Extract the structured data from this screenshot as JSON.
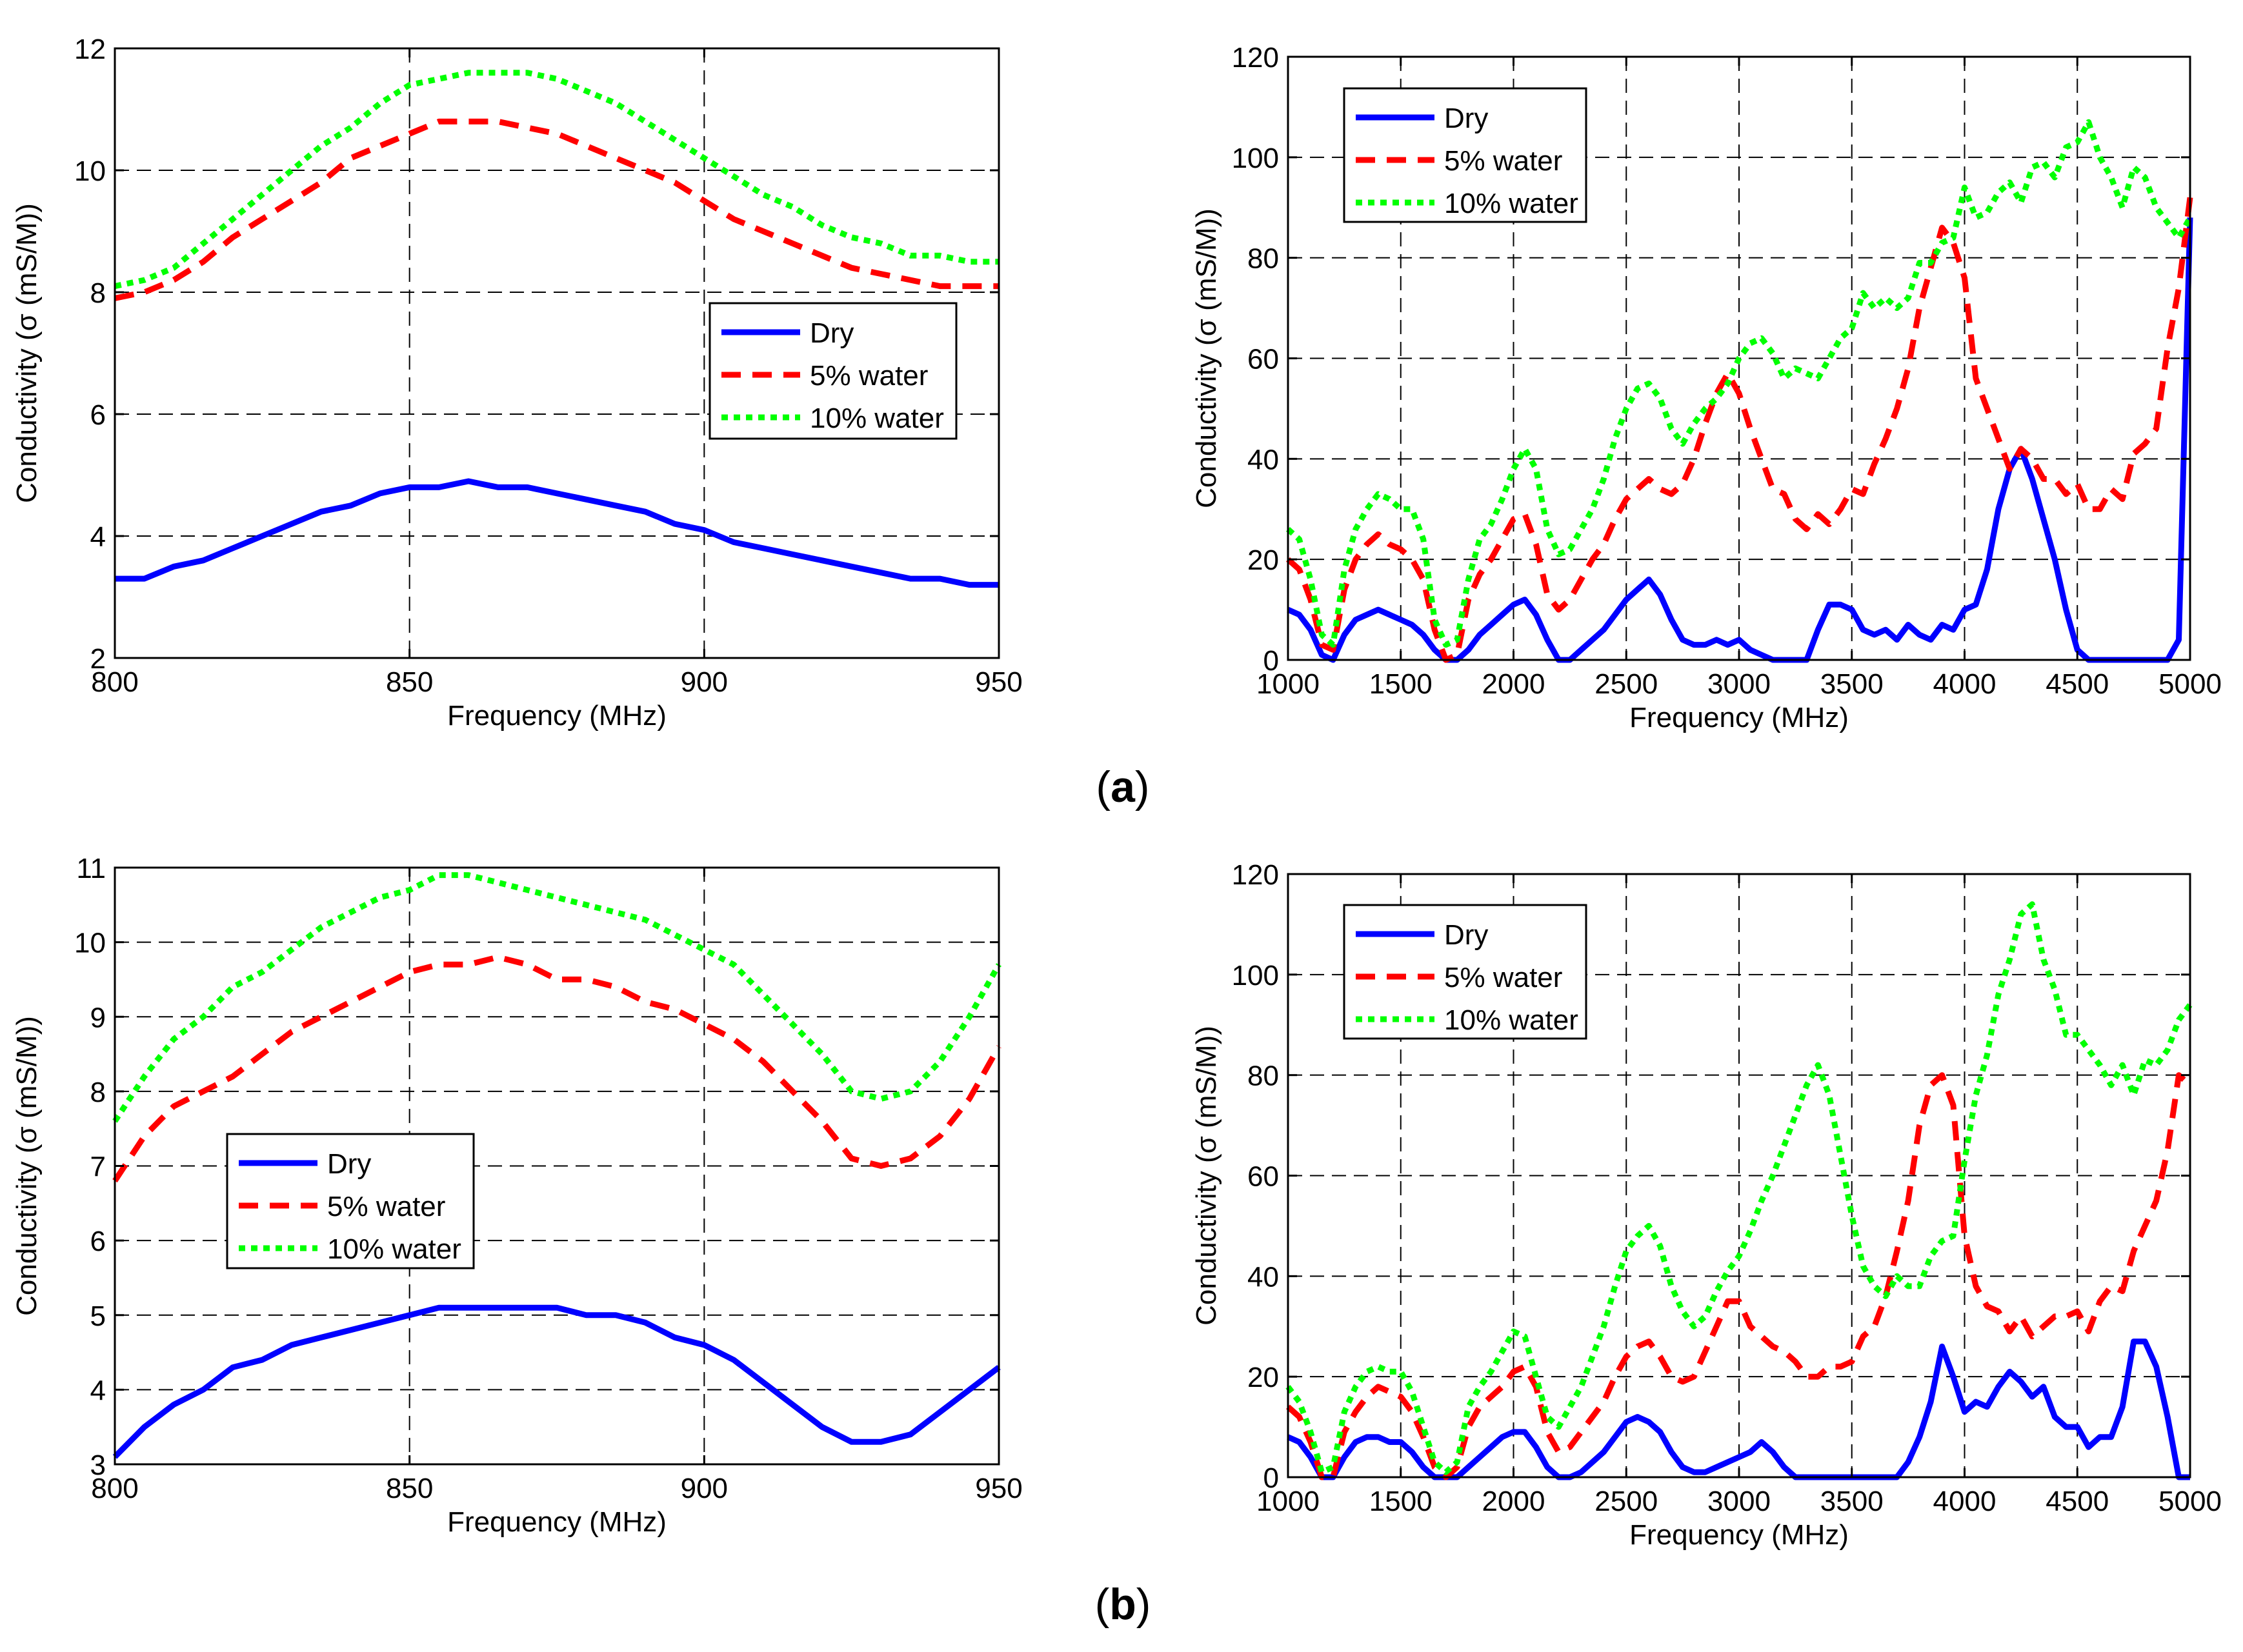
{
  "figure": {
    "captions": [
      {
        "open": "(",
        "letter": "a",
        "close": ")"
      },
      {
        "open": "(",
        "letter": "b",
        "close": ")"
      }
    ]
  },
  "colors": {
    "dry": "#0000ff",
    "five": "#ff0000",
    "ten": "#00ff00"
  },
  "chart_data": [
    {
      "type": "line",
      "panel": "a",
      "xlabel": "Frequency (MHz)",
      "ylabel": "Conductivity (σ (mS/M))",
      "xlim": [
        800,
        950
      ],
      "ylim": [
        2,
        12
      ],
      "xticks": [
        800,
        850,
        900,
        950
      ],
      "yticks": [
        2,
        4,
        6,
        8,
        10,
        12
      ],
      "grid": true,
      "legend_position": "center-right",
      "x": [
        800,
        805,
        810,
        815,
        820,
        825,
        830,
        835,
        840,
        845,
        850,
        855,
        860,
        865,
        870,
        875,
        880,
        885,
        890,
        895,
        900,
        905,
        910,
        915,
        920,
        925,
        930,
        935,
        940,
        945,
        950
      ],
      "series": [
        {
          "name": "Dry",
          "style": "solid",
          "color": "#0000ff",
          "values": [
            3.3,
            3.3,
            3.5,
            3.6,
            3.8,
            4.0,
            4.2,
            4.4,
            4.5,
            4.7,
            4.8,
            4.8,
            4.9,
            4.8,
            4.8,
            4.7,
            4.6,
            4.5,
            4.4,
            4.2,
            4.1,
            3.9,
            3.8,
            3.7,
            3.6,
            3.5,
            3.4,
            3.3,
            3.3,
            3.2,
            3.2
          ]
        },
        {
          "name": "5% water",
          "style": "dashed",
          "color": "#ff0000",
          "values": [
            7.9,
            8.0,
            8.2,
            8.5,
            8.9,
            9.2,
            9.5,
            9.8,
            10.2,
            10.4,
            10.6,
            10.8,
            10.8,
            10.8,
            10.7,
            10.6,
            10.4,
            10.2,
            10.0,
            9.8,
            9.5,
            9.2,
            9.0,
            8.8,
            8.6,
            8.4,
            8.3,
            8.2,
            8.1,
            8.1,
            8.1
          ]
        },
        {
          "name": "10% water",
          "style": "dotted",
          "color": "#00ff00",
          "values": [
            8.1,
            8.2,
            8.4,
            8.8,
            9.2,
            9.6,
            10.0,
            10.4,
            10.7,
            11.1,
            11.4,
            11.5,
            11.6,
            11.6,
            11.6,
            11.5,
            11.3,
            11.1,
            10.8,
            10.5,
            10.2,
            9.9,
            9.6,
            9.4,
            9.1,
            8.9,
            8.8,
            8.6,
            8.6,
            8.5,
            8.5
          ]
        }
      ]
    },
    {
      "type": "line",
      "panel": "a",
      "xlabel": "Frequency (MHz)",
      "ylabel": "Conductivity (σ (mS/M))",
      "xlim": [
        1000,
        5000
      ],
      "ylim": [
        0,
        120
      ],
      "xticks": [
        1000,
        1500,
        2000,
        2500,
        3000,
        3500,
        4000,
        4500,
        5000
      ],
      "yticks": [
        0,
        20,
        40,
        60,
        80,
        100,
        120
      ],
      "grid": true,
      "legend_position": "top-left",
      "x": [
        1000,
        1050,
        1100,
        1150,
        1200,
        1250,
        1300,
        1350,
        1400,
        1450,
        1500,
        1550,
        1600,
        1650,
        1700,
        1750,
        1800,
        1850,
        1900,
        1950,
        2000,
        2050,
        2100,
        2150,
        2200,
        2250,
        2300,
        2350,
        2400,
        2450,
        2500,
        2550,
        2600,
        2650,
        2700,
        2750,
        2800,
        2850,
        2900,
        2950,
        3000,
        3050,
        3100,
        3150,
        3200,
        3250,
        3300,
        3350,
        3400,
        3450,
        3500,
        3550,
        3600,
        3650,
        3700,
        3750,
        3800,
        3850,
        3900,
        3950,
        4000,
        4050,
        4100,
        4150,
        4200,
        4250,
        4300,
        4350,
        4400,
        4450,
        4500,
        4550,
        4600,
        4650,
        4700,
        4750,
        4800,
        4850,
        4900,
        4950,
        5000
      ],
      "series": [
        {
          "name": "Dry",
          "style": "solid",
          "color": "#0000ff",
          "values": [
            10,
            9,
            6,
            1,
            0,
            5,
            8,
            9,
            10,
            9,
            8,
            7,
            5,
            2,
            0,
            0,
            2,
            5,
            7,
            9,
            11,
            12,
            9,
            4,
            0,
            0,
            2,
            4,
            6,
            9,
            12,
            14,
            16,
            13,
            8,
            4,
            3,
            3,
            4,
            3,
            4,
            2,
            1,
            0,
            0,
            0,
            0,
            6,
            11,
            11,
            10,
            6,
            5,
            6,
            4,
            7,
            5,
            4,
            7,
            6,
            10,
            11,
            18,
            30,
            38,
            42,
            36,
            28,
            20,
            10,
            2,
            0,
            0,
            0,
            0,
            0,
            0,
            0,
            0,
            4,
            88
          ]
        },
        {
          "name": "5% water",
          "style": "dashed",
          "color": "#ff0000",
          "values": [
            20,
            18,
            12,
            3,
            2,
            14,
            20,
            23,
            25,
            23,
            22,
            20,
            16,
            6,
            0,
            1,
            12,
            17,
            20,
            24,
            28,
            29,
            23,
            13,
            10,
            12,
            16,
            20,
            23,
            28,
            32,
            34,
            36,
            34,
            33,
            35,
            40,
            47,
            53,
            57,
            53,
            46,
            40,
            34,
            33,
            28,
            26,
            29,
            27,
            30,
            34,
            33,
            39,
            44,
            50,
            58,
            70,
            78,
            86,
            83,
            76,
            56,
            50,
            44,
            38,
            42,
            40,
            36,
            36,
            33,
            35,
            30,
            30,
            34,
            32,
            41,
            43,
            46,
            62,
            74,
            92
          ]
        },
        {
          "name": "10% water",
          "style": "dotted",
          "color": "#00ff00",
          "values": [
            26,
            24,
            16,
            5,
            3,
            18,
            26,
            30,
            33,
            32,
            30,
            30,
            24,
            8,
            3,
            4,
            16,
            24,
            27,
            32,
            38,
            42,
            38,
            26,
            21,
            22,
            26,
            30,
            36,
            44,
            50,
            54,
            55,
            52,
            46,
            43,
            47,
            50,
            52,
            55,
            60,
            63,
            64,
            61,
            56,
            58,
            57,
            56,
            60,
            64,
            66,
            73,
            70,
            72,
            70,
            72,
            79,
            79,
            83,
            84,
            94,
            88,
            89,
            93,
            95,
            91,
            98,
            99,
            96,
            102,
            103,
            107,
            100,
            96,
            90,
            98,
            96,
            90,
            87,
            84,
            88
          ]
        }
      ]
    },
    {
      "type": "line",
      "panel": "b",
      "xlabel": "Frequency (MHz)",
      "ylabel": "Conductivity (σ (mS/M))",
      "xlim": [
        800,
        950
      ],
      "ylim": [
        3,
        11
      ],
      "xticks": [
        800,
        850,
        900,
        950
      ],
      "yticks": [
        3,
        4,
        5,
        6,
        7,
        8,
        9,
        10,
        11
      ],
      "grid": true,
      "legend_position": "center-left",
      "x": [
        800,
        805,
        810,
        815,
        820,
        825,
        830,
        835,
        840,
        845,
        850,
        855,
        860,
        865,
        870,
        875,
        880,
        885,
        890,
        895,
        900,
        905,
        910,
        915,
        920,
        925,
        930,
        935,
        940,
        945,
        950
      ],
      "series": [
        {
          "name": "Dry",
          "style": "solid",
          "color": "#0000ff",
          "values": [
            3.1,
            3.5,
            3.8,
            4.0,
            4.3,
            4.4,
            4.6,
            4.7,
            4.8,
            4.9,
            5.0,
            5.1,
            5.1,
            5.1,
            5.1,
            5.1,
            5.0,
            5.0,
            4.9,
            4.7,
            4.6,
            4.4,
            4.1,
            3.8,
            3.5,
            3.3,
            3.3,
            3.4,
            3.7,
            4.0,
            4.3
          ]
        },
        {
          "name": "5% water",
          "style": "dashed",
          "color": "#ff0000",
          "values": [
            6.8,
            7.4,
            7.8,
            8.0,
            8.2,
            8.5,
            8.8,
            9.0,
            9.2,
            9.4,
            9.6,
            9.7,
            9.7,
            9.8,
            9.7,
            9.5,
            9.5,
            9.4,
            9.2,
            9.1,
            8.9,
            8.7,
            8.4,
            8.0,
            7.6,
            7.1,
            7.0,
            7.1,
            7.4,
            7.9,
            8.6
          ]
        },
        {
          "name": "10% water",
          "style": "dotted",
          "color": "#00ff00",
          "values": [
            7.6,
            8.2,
            8.7,
            9.0,
            9.4,
            9.6,
            9.9,
            10.2,
            10.4,
            10.6,
            10.7,
            10.9,
            10.9,
            10.8,
            10.7,
            10.6,
            10.5,
            10.4,
            10.3,
            10.1,
            9.9,
            9.7,
            9.3,
            8.9,
            8.5,
            8.0,
            7.9,
            8.0,
            8.4,
            9.0,
            9.7
          ]
        }
      ]
    },
    {
      "type": "line",
      "panel": "b",
      "xlabel": "Frequency (MHz)",
      "ylabel": "Conductivity (σ (mS/M))",
      "xlim": [
        1000,
        5000
      ],
      "ylim": [
        0,
        120
      ],
      "xticks": [
        1000,
        1500,
        2000,
        2500,
        3000,
        3500,
        4000,
        4500,
        5000
      ],
      "yticks": [
        0,
        20,
        40,
        60,
        80,
        100,
        120
      ],
      "grid": true,
      "legend_position": "top-left",
      "x": [
        1000,
        1050,
        1100,
        1150,
        1200,
        1250,
        1300,
        1350,
        1400,
        1450,
        1500,
        1550,
        1600,
        1650,
        1700,
        1750,
        1800,
        1850,
        1900,
        1950,
        2000,
        2050,
        2100,
        2150,
        2200,
        2250,
        2300,
        2350,
        2400,
        2450,
        2500,
        2550,
        2600,
        2650,
        2700,
        2750,
        2800,
        2850,
        2900,
        2950,
        3000,
        3050,
        3100,
        3150,
        3200,
        3250,
        3300,
        3350,
        3400,
        3450,
        3500,
        3550,
        3600,
        3650,
        3700,
        3750,
        3800,
        3850,
        3900,
        3950,
        4000,
        4050,
        4100,
        4150,
        4200,
        4250,
        4300,
        4350,
        4400,
        4450,
        4500,
        4550,
        4600,
        4650,
        4700,
        4750,
        4800,
        4850,
        4900,
        4950,
        5000
      ],
      "series": [
        {
          "name": "Dry",
          "style": "solid",
          "color": "#0000ff",
          "values": [
            8,
            7,
            4,
            0,
            0,
            4,
            7,
            8,
            8,
            7,
            7,
            5,
            2,
            0,
            0,
            0,
            2,
            4,
            6,
            8,
            9,
            9,
            6,
            2,
            0,
            0,
            1,
            3,
            5,
            8,
            11,
            12,
            11,
            9,
            5,
            2,
            1,
            1,
            2,
            3,
            4,
            5,
            7,
            5,
            2,
            0,
            0,
            0,
            0,
            0,
            0,
            0,
            0,
            0,
            0,
            3,
            8,
            15,
            26,
            20,
            13,
            15,
            14,
            18,
            21,
            19,
            16,
            18,
            12,
            10,
            10,
            6,
            8,
            8,
            14,
            27,
            27,
            22,
            12,
            0,
            0
          ]
        },
        {
          "name": "5% water",
          "style": "dashed",
          "color": "#ff0000",
          "values": [
            14,
            12,
            7,
            0,
            0,
            9,
            13,
            16,
            18,
            17,
            16,
            13,
            8,
            2,
            0,
            2,
            10,
            14,
            16,
            18,
            21,
            22,
            18,
            9,
            5,
            6,
            9,
            12,
            15,
            20,
            24,
            26,
            27,
            24,
            20,
            19,
            20,
            25,
            30,
            35,
            35,
            30,
            28,
            26,
            25,
            23,
            20,
            20,
            22,
            22,
            23,
            28,
            30,
            36,
            45,
            55,
            70,
            78,
            80,
            74,
            48,
            38,
            34,
            33,
            29,
            32,
            28,
            30,
            32,
            32,
            33,
            29,
            35,
            38,
            37,
            45,
            50,
            55,
            65,
            80,
            78
          ]
        },
        {
          "name": "10% water",
          "style": "dotted",
          "color": "#00ff00",
          "values": [
            18,
            15,
            9,
            1,
            2,
            13,
            18,
            21,
            22,
            21,
            21,
            17,
            10,
            3,
            1,
            3,
            14,
            18,
            21,
            25,
            29,
            28,
            20,
            12,
            10,
            14,
            18,
            24,
            30,
            38,
            45,
            48,
            50,
            46,
            38,
            33,
            30,
            32,
            37,
            41,
            44,
            49,
            55,
            60,
            66,
            72,
            78,
            82,
            76,
            64,
            52,
            42,
            38,
            36,
            40,
            38,
            38,
            44,
            47,
            48,
            63,
            76,
            84,
            96,
            103,
            112,
            114,
            103,
            97,
            88,
            88,
            85,
            82,
            78,
            82,
            76,
            83,
            82,
            85,
            91,
            94
          ]
        }
      ]
    }
  ]
}
